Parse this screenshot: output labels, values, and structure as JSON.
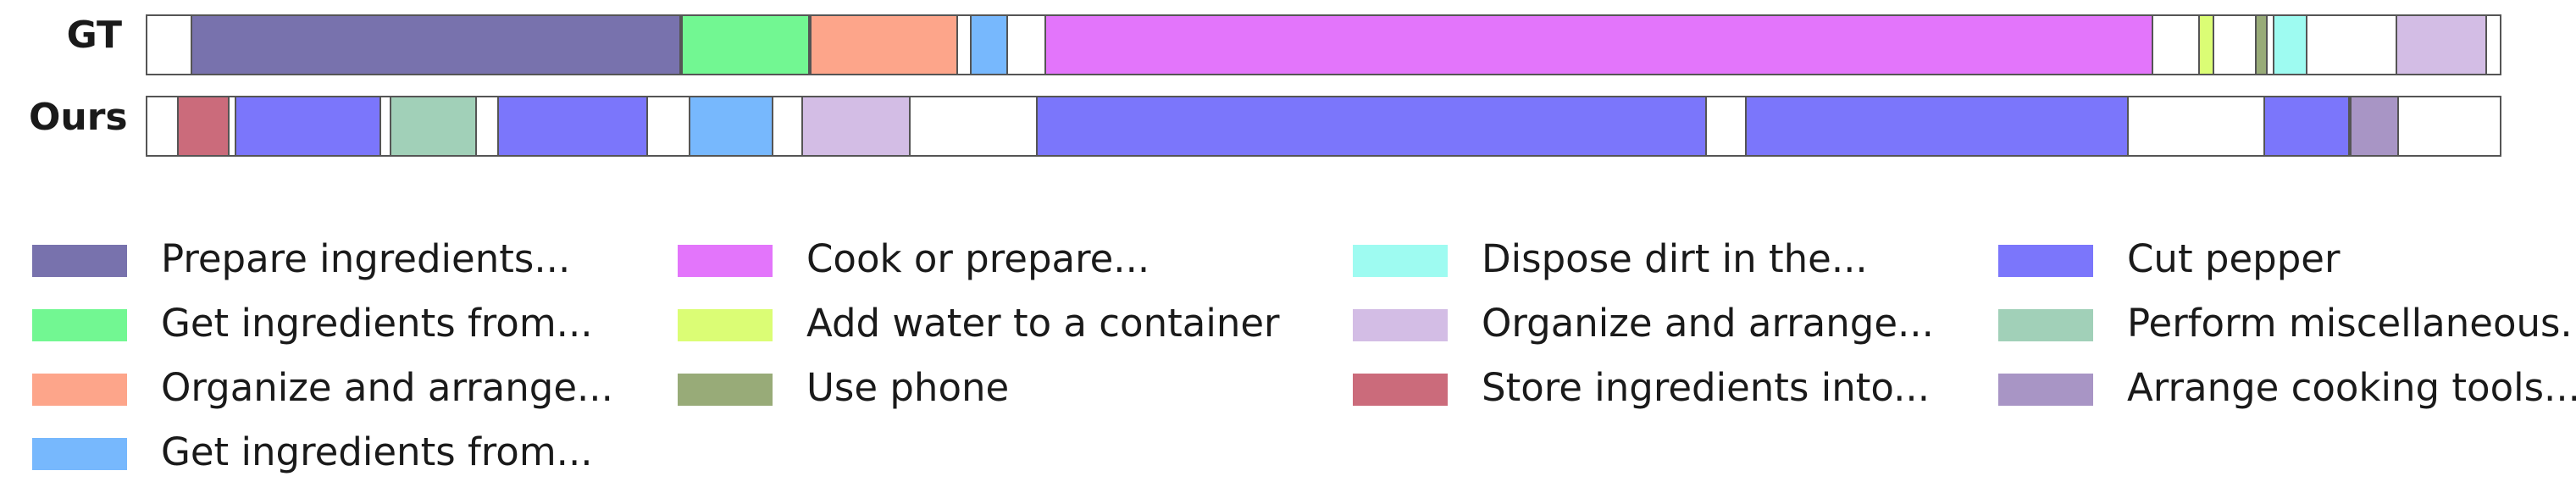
{
  "rows": [
    {
      "label": "GT",
      "segments": [
        {
          "start": 0.0183,
          "end": 0.2269,
          "color": "#7872ad"
        },
        {
          "start": 0.2269,
          "end": 0.2815,
          "color": "#72f792"
        },
        {
          "start": 0.2815,
          "end": 0.3445,
          "color": "#fda58a"
        },
        {
          "start": 0.3497,
          "end": 0.3658,
          "color": "#77b8fd"
        },
        {
          "start": 0.3812,
          "end": 0.8529,
          "color": "#e375fb"
        },
        {
          "start": 0.8718,
          "end": 0.8788,
          "color": "#dbfd75"
        },
        {
          "start": 0.896,
          "end": 0.9015,
          "color": "#98ab78"
        },
        {
          "start": 0.9036,
          "end": 0.9182,
          "color": "#9efbf1"
        },
        {
          "start": 0.9557,
          "end": 0.9945,
          "color": "#d3bde5"
        }
      ]
    },
    {
      "label": "Ours",
      "segments": [
        {
          "start": 0.0125,
          "end": 0.0348,
          "color": "#cb6b7b"
        },
        {
          "start": 0.0372,
          "end": 0.0994,
          "color": "#7b76fb"
        },
        {
          "start": 0.1031,
          "end": 0.1402,
          "color": "#a1d0b8"
        },
        {
          "start": 0.1488,
          "end": 0.2127,
          "color": "#7b76fb"
        },
        {
          "start": 0.2301,
          "end": 0.2661,
          "color": "#77b8fd"
        },
        {
          "start": 0.278,
          "end": 0.3246,
          "color": "#d3bde5"
        },
        {
          "start": 0.3779,
          "end": 0.6629,
          "color": "#7b76fb"
        },
        {
          "start": 0.679,
          "end": 0.8421,
          "color": "#7b76fb"
        },
        {
          "start": 0.8994,
          "end": 0.9364,
          "color": "#7b76fb"
        },
        {
          "start": 0.9364,
          "end": 0.9572,
          "color": "#a895c5"
        }
      ]
    }
  ],
  "legend": [
    [
      {
        "label": "Prepare ingredients...",
        "color": "#7872ad"
      },
      {
        "label": "Get ingredients from...",
        "color": "#72f792"
      },
      {
        "label": "Organize and arrange...",
        "color": "#fda58a"
      },
      {
        "label": "Get ingredients from...",
        "color": "#77b8fd"
      }
    ],
    [
      {
        "label": "Cook or prepare...",
        "color": "#e375fb"
      },
      {
        "label": "Add water to a container",
        "color": "#dbfd75"
      },
      {
        "label": "Use phone",
        "color": "#98ab78"
      }
    ],
    [
      {
        "label": "Dispose dirt in the...",
        "color": "#9efbf1"
      },
      {
        "label": "Organize and arrange...",
        "color": "#d3bde5"
      },
      {
        "label": "Store ingredients into...",
        "color": "#cb6b7b"
      }
    ],
    [
      {
        "label": "Cut pepper",
        "color": "#7b76fb"
      },
      {
        "label": "Perform miscellaneous...",
        "color": "#a1d0b8"
      },
      {
        "label": "Arrange cooking tools...",
        "color": "#a895c5"
      }
    ]
  ]
}
